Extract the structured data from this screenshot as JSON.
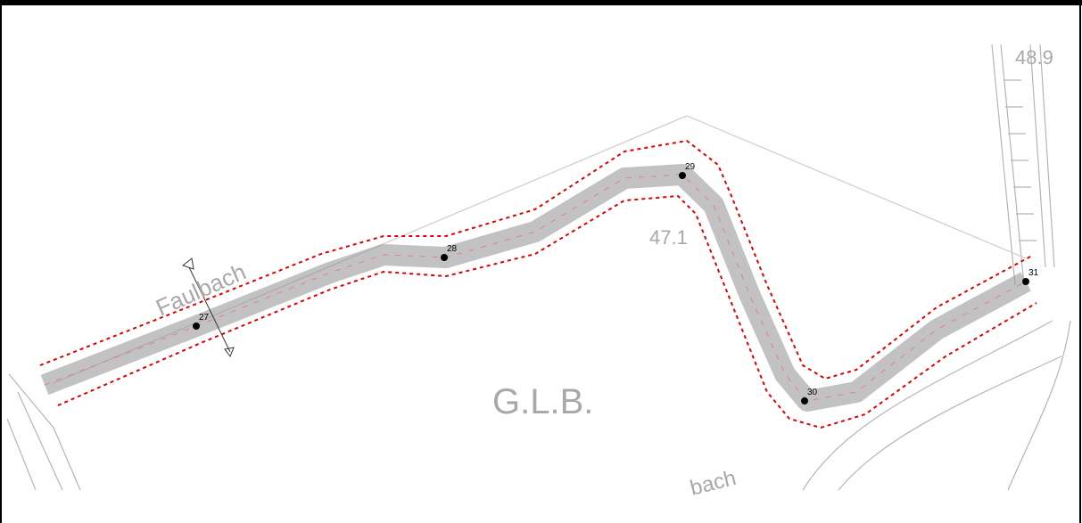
{
  "labels": {
    "spot_height_north": "48.9",
    "spot_height_center": "47.1",
    "area": "G.L.B.",
    "stream": "Faulbach",
    "stream_lower": "bach"
  },
  "stations": [
    "27",
    "28",
    "29",
    "30",
    "31"
  ]
}
